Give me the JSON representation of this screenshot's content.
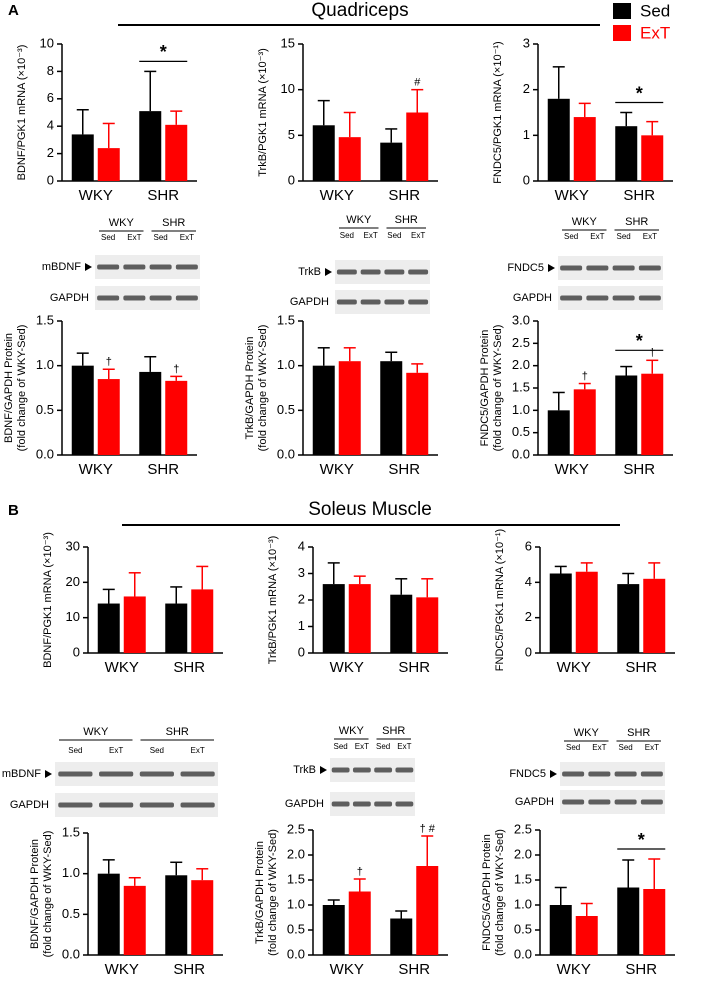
{
  "sections": [
    {
      "label": "A",
      "title": "Quadriceps"
    },
    {
      "label": "B",
      "title": "Soleus Muscle"
    }
  ],
  "blots": [
    {
      "headers": [
        "WKY",
        "SHR"
      ],
      "lanes": [
        "Sed",
        "ExT",
        "Sed",
        "ExT"
      ],
      "proteins": [
        "mBDNF",
        "GAPDH"
      ]
    },
    {
      "headers": [
        "WKY",
        "SHR"
      ],
      "lanes": [
        "Sed",
        "ExT",
        "Sed",
        "ExT"
      ],
      "proteins": [
        "TrkB",
        "GAPDH"
      ]
    },
    {
      "headers": [
        "WKY",
        "SHR"
      ],
      "lanes": [
        "Sed",
        "ExT",
        "Sed",
        "ExT"
      ],
      "proteins": [
        "FNDC5",
        "GAPDH"
      ]
    },
    {
      "headers": [
        "WKY",
        "SHR"
      ],
      "lanes": [
        "Sed",
        "ExT",
        "Sed",
        "ExT"
      ],
      "proteins": [
        "mBDNF",
        "GAPDH"
      ]
    },
    {
      "headers": [
        "WKY",
        "SHR"
      ],
      "lanes": [
        "Sed",
        "ExT",
        "Sed",
        "ExT"
      ],
      "proteins": [
        "TrkB",
        "GAPDH"
      ]
    },
    {
      "headers": [
        "WKY",
        "SHR"
      ],
      "lanes": [
        "Sed",
        "ExT",
        "Sed",
        "ExT"
      ],
      "proteins": [
        "FNDC5",
        "GAPDH"
      ]
    }
  ],
  "chart_data": [
    {
      "type": "bar",
      "ylabel": [
        "BDNF/PGK1 mRNA (×10⁻³)"
      ],
      "categories": [
        "WKY",
        "SHR"
      ],
      "series": [
        {
          "name": "Sed",
          "color": "#000000",
          "values": [
            3.4,
            5.1
          ],
          "errors": [
            1.8,
            2.9
          ]
        },
        {
          "name": "ExT",
          "color": "#ff0000",
          "values": [
            2.4,
            4.1
          ],
          "errors": [
            1.8,
            1.0
          ]
        }
      ],
      "ylim": [
        0,
        10
      ],
      "yticks": [
        0,
        2,
        4,
        6,
        8,
        10
      ],
      "annotations": [
        {
          "text": "*",
          "category": 1,
          "bracket": true
        }
      ]
    },
    {
      "type": "bar",
      "ylabel": [
        "TrkB/PGK1 mRNA (×10⁻³)"
      ],
      "categories": [
        "WKY",
        "SHR"
      ],
      "series": [
        {
          "color": "#000000",
          "values": [
            6.1,
            4.2
          ],
          "errors": [
            2.7,
            1.5
          ]
        },
        {
          "color": "#ff0000",
          "values": [
            4.8,
            7.5
          ],
          "errors": [
            2.7,
            2.5
          ]
        }
      ],
      "ylim": [
        0,
        15
      ],
      "yticks": [
        0,
        5,
        10,
        15
      ],
      "annotations": [
        {
          "text": "#",
          "category": 1,
          "series": 1
        }
      ]
    },
    {
      "type": "bar",
      "ylabel": [
        "FNDC5/PGK1 mRNA (×10⁻¹)"
      ],
      "categories": [
        "WKY",
        "SHR"
      ],
      "series": [
        {
          "color": "#000000",
          "values": [
            1.8,
            1.2
          ],
          "errors": [
            0.7,
            0.3
          ]
        },
        {
          "color": "#ff0000",
          "values": [
            1.4,
            1.0
          ],
          "errors": [
            0.3,
            0.3
          ]
        }
      ],
      "ylim": [
        0,
        3
      ],
      "yticks": [
        0,
        1,
        2,
        3
      ],
      "annotations": [
        {
          "text": "*",
          "category": 1,
          "bracket": true
        }
      ]
    },
    {
      "type": "bar",
      "ylabel": [
        "BDNF/GAPDH Protein",
        "(fold change of WKY-Sed)"
      ],
      "categories": [
        "WKY",
        "SHR"
      ],
      "series": [
        {
          "color": "#000000",
          "values": [
            1.0,
            0.93
          ],
          "errors": [
            0.14,
            0.17
          ]
        },
        {
          "color": "#ff0000",
          "values": [
            0.85,
            0.83
          ],
          "errors": [
            0.11,
            0.05
          ]
        }
      ],
      "ylim": [
        0,
        1.5
      ],
      "yticks": [
        {
          "value": 0,
          "label": "0.0"
        },
        0.5,
        {
          "value": 1,
          "label": "1.0"
        },
        1.5
      ],
      "annotations": [
        {
          "text": "†",
          "category": 0,
          "series": 1
        },
        {
          "text": "†",
          "category": 1,
          "series": 1
        }
      ]
    },
    {
      "type": "bar",
      "ylabel": [
        "TrkB/GAPDH Protein",
        "(fold change of WKY-Sed)"
      ],
      "categories": [
        "WKY",
        "SHR"
      ],
      "series": [
        {
          "color": "#000000",
          "values": [
            1.0,
            1.05
          ],
          "errors": [
            0.2,
            0.1
          ]
        },
        {
          "color": "#ff0000",
          "values": [
            1.05,
            0.92
          ],
          "errors": [
            0.15,
            0.1
          ]
        }
      ],
      "ylim": [
        0,
        1.5
      ],
      "yticks": [
        {
          "value": 0,
          "label": "0.0"
        },
        0.5,
        {
          "value": 1,
          "label": "1.0"
        },
        1.5
      ],
      "annotations": []
    },
    {
      "type": "bar",
      "ylabel": [
        "FNDC5/GAPDH Protein",
        "(fold change of WKY-Sed)"
      ],
      "categories": [
        "WKY",
        "SHR"
      ],
      "series": [
        {
          "color": "#000000",
          "values": [
            1.0,
            1.78
          ],
          "errors": [
            0.4,
            0.2
          ]
        },
        {
          "color": "#ff0000",
          "values": [
            1.47,
            1.82
          ],
          "errors": [
            0.13,
            0.3
          ]
        }
      ],
      "ylim": [
        0,
        3
      ],
      "yticks": [
        {
          "value": 0,
          "label": "0.0"
        },
        0.5,
        {
          "value": 1,
          "label": "1.0"
        },
        1.5,
        {
          "value": 2,
          "label": "2.0"
        },
        2.5,
        {
          "value": 3,
          "label": "3.0"
        }
      ],
      "annotations": [
        {
          "text": "†",
          "category": 0,
          "series": 1
        },
        {
          "text": "†",
          "category": 1,
          "series": 1
        },
        {
          "text": "*",
          "category": 1,
          "bracket": true
        }
      ]
    },
    {
      "type": "bar",
      "ylabel": [
        "BDNF/PGK1 mRNA (×10⁻³)"
      ],
      "categories": [
        "WKY",
        "SHR"
      ],
      "series": [
        {
          "color": "#000000",
          "values": [
            14,
            14
          ],
          "errors": [
            4,
            4.7
          ]
        },
        {
          "color": "#ff0000",
          "values": [
            16,
            18
          ],
          "errors": [
            6.7,
            6.5
          ]
        }
      ],
      "ylim": [
        0,
        30
      ],
      "yticks": [
        0,
        10,
        20,
        30
      ],
      "annotations": []
    },
    {
      "type": "bar",
      "ylabel": [
        "TrkB/PGK1 mRNA (×10⁻³)"
      ],
      "categories": [
        "WKY",
        "SHR"
      ],
      "series": [
        {
          "color": "#000000",
          "values": [
            2.6,
            2.2
          ],
          "errors": [
            0.8,
            0.6
          ]
        },
        {
          "color": "#ff0000",
          "values": [
            2.6,
            2.1
          ],
          "errors": [
            0.3,
            0.7
          ]
        }
      ],
      "ylim": [
        0,
        4
      ],
      "yticks": [
        0,
        1,
        2,
        3,
        4
      ],
      "annotations": []
    },
    {
      "type": "bar",
      "ylabel": [
        "FNDC5/PGK1 mRNA (×10⁻¹)"
      ],
      "categories": [
        "WKY",
        "SHR"
      ],
      "series": [
        {
          "color": "#000000",
          "values": [
            4.5,
            3.9
          ],
          "errors": [
            0.4,
            0.6
          ]
        },
        {
          "color": "#ff0000",
          "values": [
            4.6,
            4.2
          ],
          "errors": [
            0.5,
            0.9
          ]
        }
      ],
      "ylim": [
        0,
        6
      ],
      "yticks": [
        0,
        2,
        4,
        6
      ],
      "annotations": []
    },
    {
      "type": "bar",
      "ylabel": [
        "BDNF/GAPDH Protein",
        "(fold change of WKY-Sed)"
      ],
      "categories": [
        "WKY",
        "SHR"
      ],
      "series": [
        {
          "color": "#000000",
          "values": [
            1.0,
            0.98
          ],
          "errors": [
            0.17,
            0.16
          ]
        },
        {
          "color": "#ff0000",
          "values": [
            0.85,
            0.92
          ],
          "errors": [
            0.1,
            0.14
          ]
        }
      ],
      "ylim": [
        0,
        1.5
      ],
      "yticks": [
        {
          "value": 0,
          "label": "0.0"
        },
        0.5,
        {
          "value": 1,
          "label": "1.0"
        },
        1.5
      ],
      "annotations": []
    },
    {
      "type": "bar",
      "ylabel": [
        "TrkB/GAPDH Protein",
        "(fold change of WKY-Sed)"
      ],
      "categories": [
        "WKY",
        "SHR"
      ],
      "series": [
        {
          "color": "#000000",
          "values": [
            1.0,
            0.73
          ],
          "errors": [
            0.1,
            0.15
          ]
        },
        {
          "color": "#ff0000",
          "values": [
            1.27,
            1.78
          ],
          "errors": [
            0.25,
            0.6
          ]
        }
      ],
      "ylim": [
        0,
        2.5
      ],
      "yticks": [
        {
          "value": 0,
          "label": "0.0"
        },
        0.5,
        {
          "value": 1,
          "label": "1.0"
        },
        1.5,
        {
          "value": 2,
          "label": "2.0"
        },
        2.5
      ],
      "annotations": [
        {
          "text": "†",
          "category": 0,
          "series": 1
        },
        {
          "text": "† #",
          "category": 1,
          "series": 1
        }
      ]
    },
    {
      "type": "bar",
      "ylabel": [
        "FNDC5/GAPDH Protein",
        "(fold change of WKY-Sed)"
      ],
      "categories": [
        "WKY",
        "SHR"
      ],
      "series": [
        {
          "color": "#000000",
          "values": [
            1.0,
            1.35
          ],
          "errors": [
            0.35,
            0.55
          ]
        },
        {
          "color": "#ff0000",
          "values": [
            0.78,
            1.32
          ],
          "errors": [
            0.25,
            0.6
          ]
        }
      ],
      "ylim": [
        0,
        2.5
      ],
      "yticks": [
        {
          "value": 0,
          "label": "0.0"
        },
        0.5,
        {
          "value": 1,
          "label": "1.0"
        },
        1.5,
        {
          "value": 2,
          "label": "2.0"
        },
        2.5
      ],
      "annotations": [
        {
          "text": "*",
          "category": 1,
          "bracket": true
        }
      ]
    }
  ]
}
